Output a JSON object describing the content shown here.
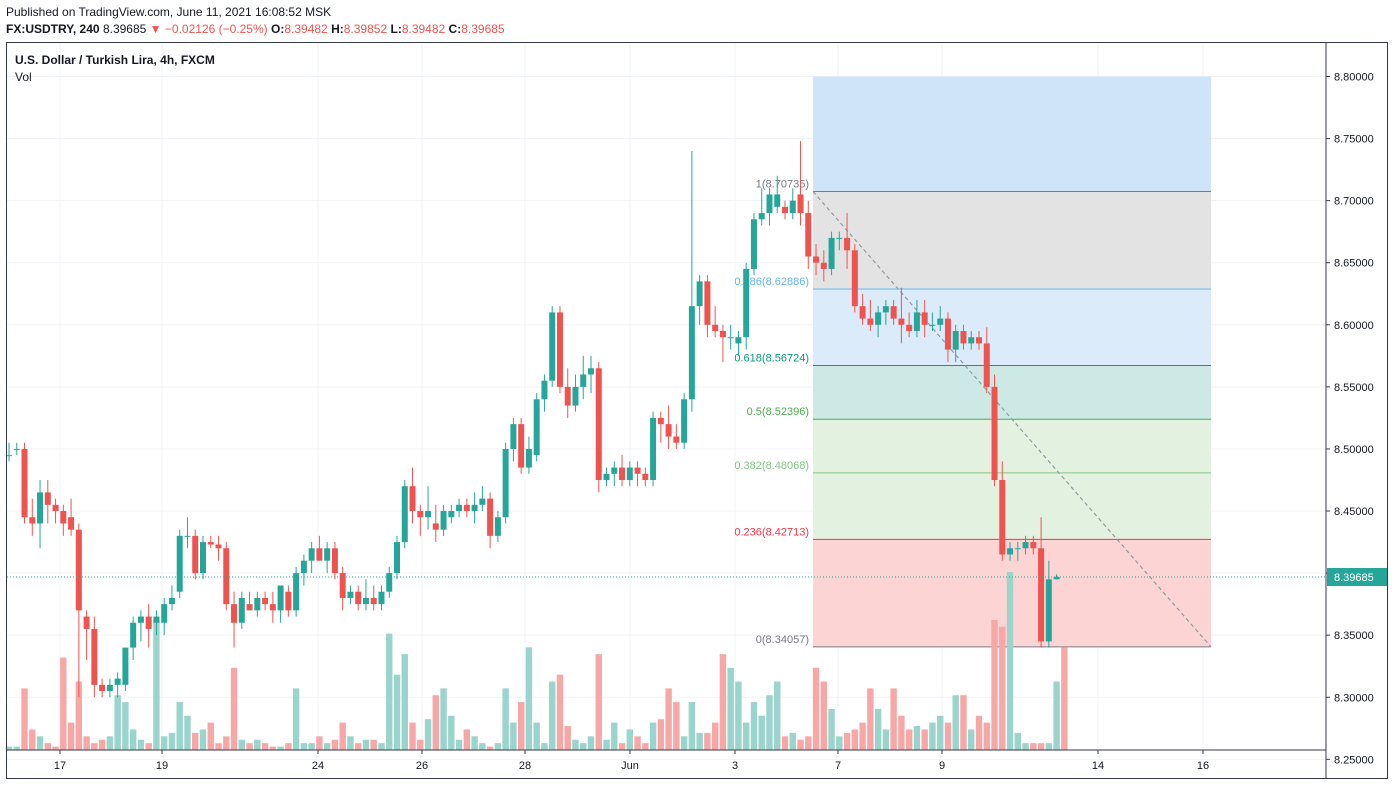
{
  "header": {
    "published": "Published on TradingView.com, June 11, 2021 16:08:52 MSK",
    "symbol": "FX:USDTRY, 240",
    "last": "8.39685",
    "change": "−0.02126 (−0.25%)",
    "o_label": "O:",
    "o_val": "8.39482",
    "h_label": "H:",
    "h_val": "8.39852",
    "l_label": "L:",
    "l_val": "8.39482",
    "c_label": "C:",
    "c_val": "8.39685"
  },
  "legend": {
    "title": "U.S. Dollar / Turkish Lira, 4h, FXCM",
    "vol": "Vol"
  },
  "colors": {
    "up": "#26a69a",
    "down": "#ef5350",
    "up_vol": "#99d4cd",
    "down_vol": "#f7a8a6",
    "fib_blue": "#cfe3f9",
    "fib_gray": "#e3e3e3",
    "fib_lightblue": "#dcebf9",
    "fib_teal": "#cde9e6",
    "fib_green": "#e3f1e1",
    "fib_red": "#fcd4d3"
  },
  "price_tag": "8.39685",
  "chart_data": {
    "type": "candlestick",
    "title": "U.S. Dollar / Turkish Lira, 4h, FXCM",
    "ylim": [
      8.23,
      8.8
    ],
    "y_ticks": [
      "8.80000",
      "8.75000",
      "8.70000",
      "8.65000",
      "8.60000",
      "8.55000",
      "8.50000",
      "8.45000",
      "8.40000",
      "8.35000",
      "8.30000",
      "8.25000"
    ],
    "x_ticks": [
      "17",
      "19",
      "24",
      "26",
      "28",
      "Jun",
      "3",
      "7",
      "9",
      "14",
      "16"
    ],
    "fibonacci": [
      {
        "label": "1(8.70735)",
        "value": 8.70735
      },
      {
        "label": "0.786(8.62886)",
        "value": 8.62886
      },
      {
        "label": "0.618(8.56724)",
        "value": 8.56724
      },
      {
        "label": "0.5(8.52396)",
        "value": 8.52396
      },
      {
        "label": "0.382(8.48068)",
        "value": 8.48068
      },
      {
        "label": "0.236(8.42713)",
        "value": 8.42713
      },
      {
        "label": "0(8.34057)",
        "value": 8.34057
      }
    ],
    "fib_extension_top": 8.8,
    "candles": [
      [
        8.495,
        8.505,
        8.49,
        8.495
      ],
      [
        8.5,
        8.505,
        8.495,
        8.5
      ],
      [
        8.5,
        8.505,
        8.44,
        8.445
      ],
      [
        8.445,
        8.46,
        8.43,
        8.44
      ],
      [
        8.44,
        8.475,
        8.42,
        8.465
      ],
      [
        8.465,
        8.475,
        8.44,
        8.455
      ],
      [
        8.455,
        8.46,
        8.44,
        8.45
      ],
      [
        8.45,
        8.455,
        8.43,
        8.44
      ],
      [
        8.445,
        8.46,
        8.43,
        8.435
      ],
      [
        8.435,
        8.44,
        8.3,
        8.37
      ],
      [
        8.365,
        8.37,
        8.33,
        8.355
      ],
      [
        8.355,
        8.365,
        8.3,
        8.31
      ],
      [
        8.31,
        8.315,
        8.3,
        8.305
      ],
      [
        8.305,
        8.315,
        8.3,
        8.31
      ],
      [
        8.31,
        8.32,
        8.3,
        8.315
      ],
      [
        8.31,
        8.34,
        8.305,
        8.34
      ],
      [
        8.34,
        8.365,
        8.33,
        8.36
      ],
      [
        8.36,
        8.37,
        8.345,
        8.365
      ],
      [
        8.365,
        8.375,
        8.34,
        8.355
      ],
      [
        8.36,
        8.37,
        8.35,
        8.365
      ],
      [
        8.36,
        8.38,
        8.35,
        8.375
      ],
      [
        8.375,
        8.39,
        8.37,
        8.38
      ],
      [
        8.385,
        8.435,
        8.38,
        8.43
      ],
      [
        8.43,
        8.445,
        8.42,
        8.43
      ],
      [
        8.43,
        8.435,
        8.395,
        8.4
      ],
      [
        8.4,
        8.43,
        8.395,
        8.425
      ],
      [
        8.425,
        8.43,
        8.42,
        8.423
      ],
      [
        8.423,
        8.43,
        8.41,
        8.42
      ],
      [
        8.42,
        8.425,
        8.37,
        8.375
      ],
      [
        8.375,
        8.385,
        8.34,
        8.36
      ],
      [
        8.36,
        8.385,
        8.355,
        8.38
      ],
      [
        8.375,
        8.385,
        8.37,
        8.37
      ],
      [
        8.37,
        8.385,
        8.365,
        8.38
      ],
      [
        8.38,
        8.385,
        8.37,
        8.375
      ],
      [
        8.375,
        8.385,
        8.36,
        8.37
      ],
      [
        8.37,
        8.39,
        8.36,
        8.39
      ],
      [
        8.385,
        8.39,
        8.365,
        8.37
      ],
      [
        8.37,
        8.405,
        8.365,
        8.4
      ],
      [
        8.4,
        8.415,
        8.39,
        8.41
      ],
      [
        8.41,
        8.425,
        8.4,
        8.42
      ],
      [
        8.42,
        8.43,
        8.41,
        8.41
      ],
      [
        8.41,
        8.425,
        8.4,
        8.42
      ],
      [
        8.42,
        8.425,
        8.395,
        8.4
      ],
      [
        8.4,
        8.405,
        8.37,
        8.38
      ],
      [
        8.38,
        8.39,
        8.375,
        8.385
      ],
      [
        8.385,
        8.39,
        8.37,
        8.375
      ],
      [
        8.375,
        8.395,
        8.37,
        8.38
      ],
      [
        8.38,
        8.39,
        8.37,
        8.375
      ],
      [
        8.375,
        8.39,
        8.37,
        8.385
      ],
      [
        8.385,
        8.405,
        8.38,
        8.4
      ],
      [
        8.4,
        8.43,
        8.395,
        8.425
      ],
      [
        8.425,
        8.475,
        8.42,
        8.47
      ],
      [
        8.47,
        8.485,
        8.44,
        8.45
      ],
      [
        8.45,
        8.455,
        8.43,
        8.445
      ],
      [
        8.445,
        8.47,
        8.435,
        8.45
      ],
      [
        8.44,
        8.455,
        8.425,
        8.435
      ],
      [
        8.435,
        8.455,
        8.43,
        8.45
      ],
      [
        8.445,
        8.455,
        8.44,
        8.45
      ],
      [
        8.45,
        8.46,
        8.445,
        8.455
      ],
      [
        8.455,
        8.46,
        8.445,
        8.45
      ],
      [
        8.45,
        8.465,
        8.44,
        8.455
      ],
      [
        8.455,
        8.47,
        8.45,
        8.46
      ],
      [
        8.46,
        8.465,
        8.42,
        8.43
      ],
      [
        8.43,
        8.45,
        8.425,
        8.445
      ],
      [
        8.445,
        8.505,
        8.44,
        8.5
      ],
      [
        8.5,
        8.525,
        8.49,
        8.52
      ],
      [
        8.52,
        8.525,
        8.48,
        8.485
      ],
      [
        8.485,
        8.51,
        8.48,
        8.5
      ],
      [
        8.495,
        8.545,
        8.49,
        8.54
      ],
      [
        8.54,
        8.56,
        8.53,
        8.555
      ],
      [
        8.555,
        8.615,
        8.55,
        8.61
      ],
      [
        8.61,
        8.615,
        8.545,
        8.55
      ],
      [
        8.55,
        8.565,
        8.525,
        8.535
      ],
      [
        8.535,
        8.56,
        8.53,
        8.55
      ],
      [
        8.55,
        8.575,
        8.54,
        8.56
      ],
      [
        8.56,
        8.575,
        8.545,
        8.565
      ],
      [
        8.565,
        8.57,
        8.465,
        8.475
      ],
      [
        8.475,
        8.485,
        8.47,
        8.48
      ],
      [
        8.48,
        8.49,
        8.47,
        8.485
      ],
      [
        8.485,
        8.495,
        8.47,
        8.475
      ],
      [
        8.475,
        8.49,
        8.47,
        8.485
      ],
      [
        8.485,
        8.49,
        8.47,
        8.48
      ],
      [
        8.48,
        8.485,
        8.47,
        8.475
      ],
      [
        8.475,
        8.53,
        8.47,
        8.525
      ],
      [
        8.525,
        8.53,
        8.505,
        8.52
      ],
      [
        8.52,
        8.535,
        8.5,
        8.51
      ],
      [
        8.51,
        8.52,
        8.5,
        8.505
      ],
      [
        8.505,
        8.545,
        8.5,
        8.54
      ],
      [
        8.54,
        8.74,
        8.53,
        8.615
      ],
      [
        8.615,
        8.64,
        8.6,
        8.635
      ],
      [
        8.635,
        8.64,
        8.59,
        8.6
      ],
      [
        8.6,
        8.615,
        8.59,
        8.595
      ],
      [
        8.595,
        8.6,
        8.57,
        8.59
      ],
      [
        8.59,
        8.6,
        8.58,
        8.59
      ],
      [
        8.585,
        8.595,
        8.575,
        8.59
      ],
      [
        8.59,
        8.65,
        8.58,
        8.645
      ],
      [
        8.645,
        8.69,
        8.64,
        8.685
      ],
      [
        8.685,
        8.71,
        8.68,
        8.69
      ],
      [
        8.69,
        8.71,
        8.68,
        8.705
      ],
      [
        8.695,
        8.72,
        8.69,
        8.705
      ],
      [
        8.695,
        8.7,
        8.685,
        8.69
      ],
      [
        8.69,
        8.71,
        8.685,
        8.7
      ],
      [
        8.705,
        8.748,
        8.68,
        8.69
      ],
      [
        8.69,
        8.7,
        8.645,
        8.655
      ],
      [
        8.655,
        8.665,
        8.64,
        8.65
      ],
      [
        8.65,
        8.66,
        8.635,
        8.645
      ],
      [
        8.645,
        8.675,
        8.64,
        8.67
      ],
      [
        8.67,
        8.675,
        8.66,
        8.67
      ],
      [
        8.67,
        8.69,
        8.645,
        8.66
      ],
      [
        8.66,
        8.665,
        8.61,
        8.615
      ],
      [
        8.615,
        8.625,
        8.6,
        8.605
      ],
      [
        8.605,
        8.62,
        8.595,
        8.6
      ],
      [
        8.6,
        8.615,
        8.59,
        8.61
      ],
      [
        8.61,
        8.62,
        8.6,
        8.615
      ],
      [
        8.615,
        8.62,
        8.6,
        8.605
      ],
      [
        8.605,
        8.63,
        8.585,
        8.6
      ],
      [
        8.6,
        8.61,
        8.59,
        8.595
      ],
      [
        8.595,
        8.62,
        8.59,
        8.61
      ],
      [
        8.61,
        8.62,
        8.59,
        8.6
      ],
      [
        8.6,
        8.61,
        8.595,
        8.6
      ],
      [
        8.6,
        8.615,
        8.595,
        8.605
      ],
      [
        8.605,
        8.61,
        8.57,
        8.58
      ],
      [
        8.58,
        8.6,
        8.57,
        8.595
      ],
      [
        8.595,
        8.6,
        8.58,
        8.585
      ],
      [
        8.585,
        8.595,
        8.58,
        8.59
      ],
      [
        8.59,
        8.595,
        8.58,
        8.585
      ],
      [
        8.585,
        8.598,
        8.545,
        8.55
      ],
      [
        8.55,
        8.56,
        8.47,
        8.475
      ],
      [
        8.475,
        8.49,
        8.41,
        8.415
      ],
      [
        8.415,
        8.425,
        8.41,
        8.42
      ],
      [
        8.42,
        8.425,
        8.41,
        8.42
      ],
      [
        8.42,
        8.43,
        8.415,
        8.425
      ],
      [
        8.425,
        8.43,
        8.415,
        8.42
      ],
      [
        8.42,
        8.445,
        8.34,
        8.345
      ],
      [
        8.345,
        8.41,
        8.34,
        8.395
      ],
      [
        8.395,
        8.399,
        8.395,
        8.397
      ]
    ],
    "volume": [
      1,
      1,
      18,
      6,
      4,
      2,
      1,
      27,
      8,
      20,
      4,
      2,
      3,
      4,
      16,
      14,
      6,
      3,
      2,
      38,
      4,
      5,
      14,
      10,
      5,
      6,
      8,
      2,
      4,
      24,
      3,
      2,
      3,
      2,
      1,
      1,
      2,
      18,
      2,
      2,
      4,
      2,
      3,
      8,
      4,
      2,
      3,
      3,
      2,
      34,
      22,
      28,
      8,
      3,
      9,
      16,
      18,
      10,
      3,
      6,
      4,
      2,
      1,
      2,
      18,
      8,
      14,
      30,
      8,
      2,
      20,
      22,
      7,
      3,
      2,
      4,
      28,
      3,
      8,
      2,
      6,
      4,
      2,
      8,
      9,
      18,
      14,
      4,
      14,
      5,
      5,
      8,
      28,
      24,
      20,
      8,
      14,
      10,
      16,
      20,
      4,
      5,
      3,
      4,
      24,
      20,
      12,
      4,
      5,
      6,
      8,
      18,
      12,
      6,
      18,
      10,
      6,
      7,
      6,
      8,
      10,
      8,
      16,
      16,
      6,
      10,
      8,
      38,
      36,
      52,
      5,
      2,
      2,
      2,
      2,
      20,
      30
    ]
  },
  "axis": {
    "x_positions": [
      60,
      162,
      318,
      422,
      525,
      630,
      735,
      838,
      942,
      1098,
      1203
    ]
  }
}
